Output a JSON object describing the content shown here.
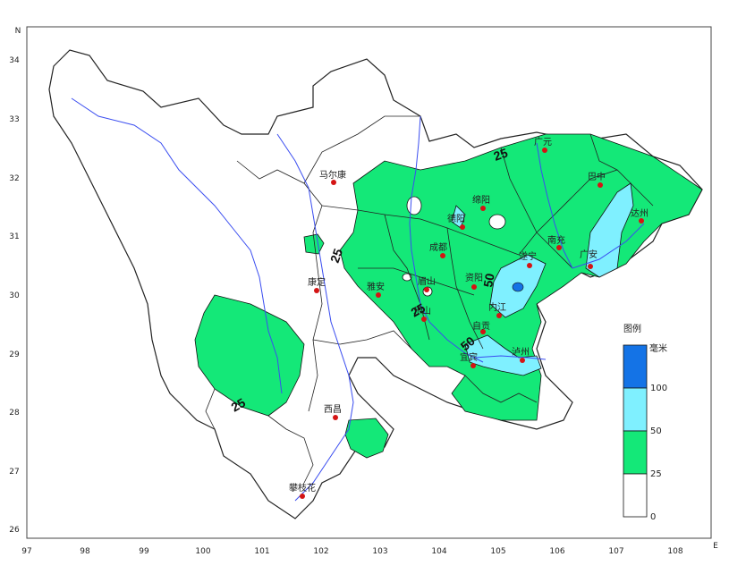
{
  "map": {
    "axes": {
      "lon_ticks": [
        "97",
        "98",
        "99",
        "100",
        "101",
        "102",
        "103",
        "104",
        "105",
        "106",
        "107",
        "108"
      ],
      "lat_ticks": [
        "34",
        "33",
        "32",
        "31",
        "30",
        "29",
        "28",
        "27",
        "26"
      ],
      "north_label": "N",
      "east_label": "E"
    },
    "cities": [
      {
        "name": "马尔康"
      },
      {
        "name": "康定"
      },
      {
        "name": "西昌"
      },
      {
        "name": "攀枝花"
      },
      {
        "name": "德阳"
      },
      {
        "name": "绵阳"
      },
      {
        "name": "成都"
      },
      {
        "name": "雅安"
      },
      {
        "name": "眉山"
      },
      {
        "name": "资阳"
      },
      {
        "name": "遂宁"
      },
      {
        "name": "南充"
      },
      {
        "name": "广安"
      },
      {
        "name": "达州"
      },
      {
        "name": "巴中"
      },
      {
        "name": "广元"
      },
      {
        "name": "内江"
      },
      {
        "name": "乐山"
      },
      {
        "name": "自贡"
      },
      {
        "name": "宜宾"
      },
      {
        "name": "泸州"
      }
    ],
    "contour_labels": [
      "25",
      "25",
      "25",
      "25",
      "50",
      "50"
    ],
    "legend": {
      "title": "图例",
      "unit": "毫米",
      "levels": [
        "100",
        "50",
        "25",
        "0"
      ],
      "colors": {
        "c100": "#1473e6",
        "c50": "#7ff0ff",
        "c25": "#14e878",
        "c0": "#ffffff"
      }
    },
    "colors": {
      "river": "#3a4df0",
      "border": "#222222",
      "city_dot": "#d41414"
    }
  }
}
